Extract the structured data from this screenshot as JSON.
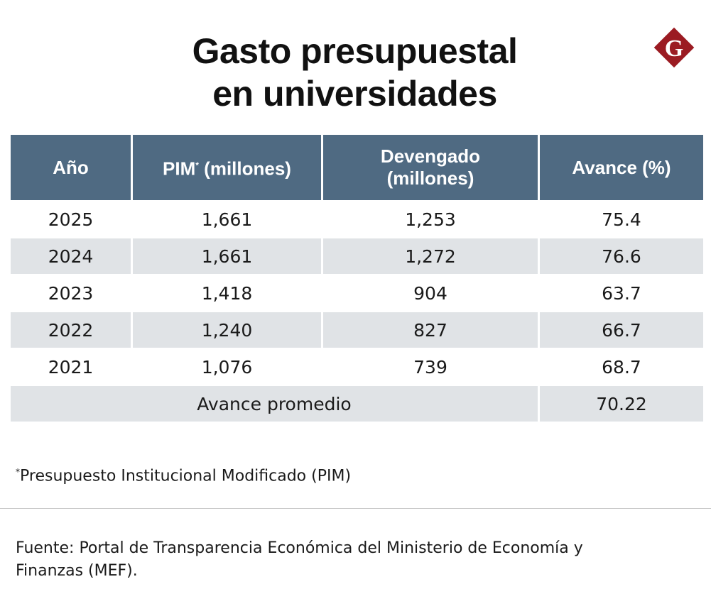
{
  "title": [
    "Gasto presupuestal",
    "en universidades"
  ],
  "logo": {
    "letter": "G",
    "color": "#9b1b22"
  },
  "header_color": "#4f6a82",
  "chart_data": {
    "type": "table",
    "columns": [
      "Año",
      "PIM* (millones)",
      "Devengado (millones)",
      "Avance (%)"
    ],
    "rows": [
      [
        "2025",
        "1,661",
        "1,253",
        "75.4"
      ],
      [
        "2024",
        "1,661",
        "1,272",
        "76.6"
      ],
      [
        "2023",
        "1,418",
        "904",
        "63.7"
      ],
      [
        "2022",
        "1,240",
        "827",
        "66.7"
      ],
      [
        "2021",
        "1,076",
        "739",
        "68.7"
      ]
    ],
    "summary": {
      "label": "Avance promedio",
      "value": "70.22"
    }
  },
  "header": {
    "year": "Año",
    "pim": "PIM",
    "pim_mark": "*",
    "pim_unit": " (millones)",
    "dev_1": "Devengado",
    "dev_2": "(millones)",
    "avance": "Avance (%)"
  },
  "footnote": {
    "mark": "*",
    "text": "Presupuesto Institucional Modificado (PIM)"
  },
  "source": "Fuente: Portal de Transparencia Económica del Ministerio de Economía y Finanzas (MEF)."
}
